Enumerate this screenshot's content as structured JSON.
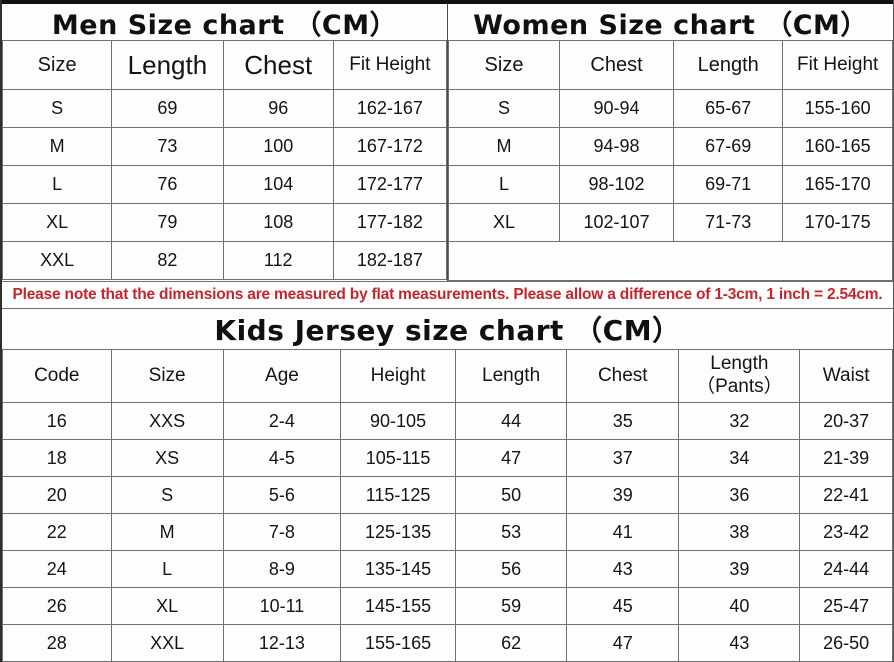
{
  "men": {
    "title": "Men Size chart （CM）",
    "headers": [
      "Size",
      "Length",
      "Chest",
      "Fit Height"
    ],
    "rows": [
      [
        "S",
        "69",
        "96",
        "162-167"
      ],
      [
        "M",
        "73",
        "100",
        "167-172"
      ],
      [
        "L",
        "76",
        "104",
        "172-177"
      ],
      [
        "XL",
        "79",
        "108",
        "177-182"
      ],
      [
        "XXL",
        "82",
        "112",
        "182-187"
      ]
    ]
  },
  "women": {
    "title": "Women Size chart （CM）",
    "headers": [
      "Size",
      "Chest",
      "Length",
      "Fit Height"
    ],
    "rows": [
      [
        "S",
        "90-94",
        "65-67",
        "155-160"
      ],
      [
        "M",
        "94-98",
        "67-69",
        "160-165"
      ],
      [
        "L",
        "98-102",
        "69-71",
        "165-170"
      ],
      [
        "XL",
        "102-107",
        "71-73",
        "170-175"
      ]
    ],
    "empty_row": true
  },
  "note": {
    "text": "Please note that the dimensions are measured by flat measurements. Please allow a difference of 1-3cm, 1 inch = 2.54cm."
  },
  "kids": {
    "title": "Kids Jersey size chart （CM）",
    "headers": [
      "Code",
      "Size",
      "Age",
      "Height",
      "Length",
      "Chest",
      "Length\n（Pants）",
      "Waist"
    ],
    "rows": [
      [
        "16",
        "XXS",
        "2-4",
        "90-105",
        "44",
        "35",
        "32",
        "20-37"
      ],
      [
        "18",
        "XS",
        "4-5",
        "105-115",
        "47",
        "37",
        "34",
        "21-39"
      ],
      [
        "20",
        "S",
        "5-6",
        "115-125",
        "50",
        "39",
        "36",
        "22-41"
      ],
      [
        "22",
        "M",
        "7-8",
        "125-135",
        "53",
        "41",
        "38",
        "23-42"
      ],
      [
        "24",
        "L",
        "8-9",
        "135-145",
        "56",
        "43",
        "39",
        "24-44"
      ],
      [
        "26",
        "XL",
        "10-11",
        "145-155",
        "59",
        "45",
        "40",
        "25-47"
      ],
      [
        "28",
        "XXL",
        "12-13",
        "155-165",
        "62",
        "47",
        "43",
        "26-50"
      ]
    ]
  },
  "colors": {
    "note_red": "#c1272d",
    "grid": "#6f6f6f",
    "frame": "#2e2e2e",
    "background": "#fdfdfd"
  }
}
